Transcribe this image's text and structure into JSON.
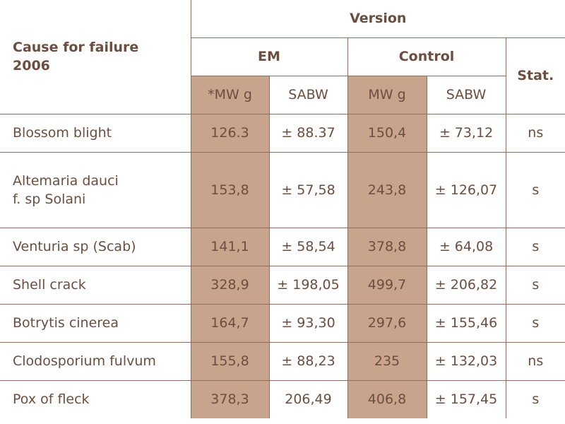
{
  "header": {
    "cause_label": "Cause for failure 2006",
    "version": "Version",
    "em": "EM",
    "control": "Control",
    "stat": "Stat.",
    "em_mw": "*MW g",
    "em_sabw": "SABW",
    "control_mw": "MW g",
    "control_sabw": "SABW"
  },
  "rows": [
    {
      "cause": "Blossom blight",
      "em_mw": "126.3",
      "em_sabw": "± 88.37",
      "ctrl_mw": "150,4",
      "ctrl_sabw": "± 73,12",
      "stat": "ns"
    },
    {
      "cause": "Altemaria dauci f. sp Solani",
      "em_mw": "153,8",
      "em_sabw": "± 57,58",
      "ctrl_mw": "243,8",
      "ctrl_sabw": "± 126,07",
      "stat": "s"
    },
    {
      "cause": "Venturia sp (Scab)",
      "em_mw": "141,1",
      "em_sabw": "± 58,54",
      "ctrl_mw": "378,8",
      "ctrl_sabw": "± 64,08",
      "stat": "s"
    },
    {
      "cause": "Shell crack",
      "em_mw": "328,9",
      "em_sabw": "± 198,05",
      "ctrl_mw": "499,7",
      "ctrl_sabw": "± 206,82",
      "stat": "s"
    },
    {
      "cause": "Botrytis cinerea",
      "em_mw": "164,7",
      "em_sabw": "± 93,30",
      "ctrl_mw": "297,6",
      "ctrl_sabw": "± 155,46",
      "stat": "s"
    },
    {
      "cause": "Clodosporium fulvum",
      "em_mw": "155,8",
      "em_sabw": "± 88,23",
      "ctrl_mw": "235",
      "ctrl_sabw": "± 132,03",
      "stat": "ns"
    },
    {
      "cause": "Pox of fleck",
      "em_mw": "378,3",
      "em_sabw": "206,49",
      "ctrl_mw": "406,8",
      "ctrl_sabw": "± 157,45",
      "stat": "s"
    }
  ]
}
